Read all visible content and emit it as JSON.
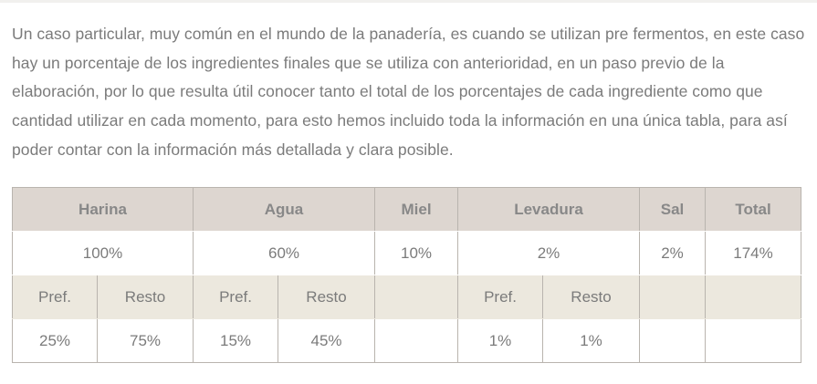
{
  "intro_text": "Un caso particular, muy común en el mundo de la panadería, es cuando se utilizan pre fermentos, en este caso hay un porcentaje de los ingredientes finales que se utiliza con anterioridad, en un paso previo de la elaboración, por lo que resulta útil conocer tanto el total de los porcentajes de cada ingrediente como que cantidad utilizar en cada momento, para esto hemos incluido toda la información en una única tabla, para así poder contar con la información más detallada y clara posible.",
  "table": {
    "headers": {
      "harina": "Harina",
      "agua": "Agua",
      "miel": "Miel",
      "levadura": "Levadura",
      "sal": "Sal",
      "total": "Total"
    },
    "totals": {
      "harina": "100%",
      "agua": "60%",
      "miel": "10%",
      "levadura": "2%",
      "sal": "2%",
      "total": "174%"
    },
    "sub_labels": {
      "pref": "Pref.",
      "resto": "Resto"
    },
    "split": {
      "harina_pref": "25%",
      "harina_resto": "75%",
      "agua_pref": "15%",
      "agua_resto": "45%",
      "levadura_pref": "1%",
      "levadura_resto": "1%"
    }
  }
}
